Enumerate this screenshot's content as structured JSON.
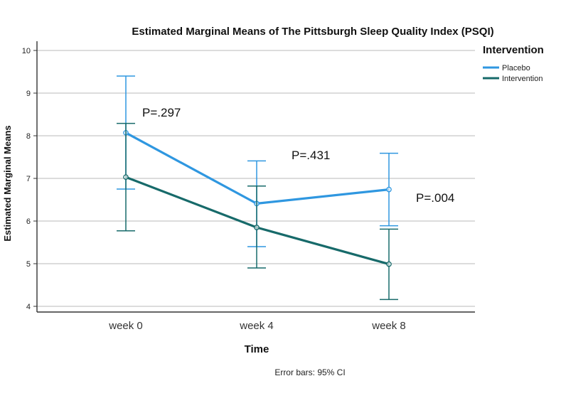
{
  "chart_data": {
    "type": "line",
    "title": "Estimated Marginal Means of The Pittsburgh Sleep Quality Index (PSQI)",
    "xlabel": "Time",
    "ylabel": "Estimated Marginal Means",
    "categories": [
      "week 0",
      "week 4",
      "week 8"
    ],
    "ylim": [
      3.85,
      10.3
    ],
    "yticks": [
      4,
      5,
      6,
      7,
      8,
      9,
      10
    ],
    "grid": true,
    "legend": {
      "title": "Intervention",
      "position": "top-right",
      "entries": [
        "Placebo",
        "Intervention"
      ]
    },
    "series": [
      {
        "name": "Placebo",
        "color": "#2f97e0",
        "values": [
          8.07,
          6.41,
          6.74
        ],
        "ci_low": [
          6.75,
          5.4,
          5.89
        ],
        "ci_high": [
          9.4,
          7.41,
          7.59
        ]
      },
      {
        "name": "Intervention",
        "color": "#176a6a",
        "values": [
          7.03,
          5.85,
          4.99
        ],
        "ci_low": [
          5.77,
          4.9,
          4.16
        ],
        "ci_high": [
          8.29,
          6.82,
          5.81
        ]
      }
    ],
    "annotations": [
      "P=.297",
      "P=.431",
      "P=.004"
    ],
    "footnote": "Error bars: 95% CI"
  }
}
